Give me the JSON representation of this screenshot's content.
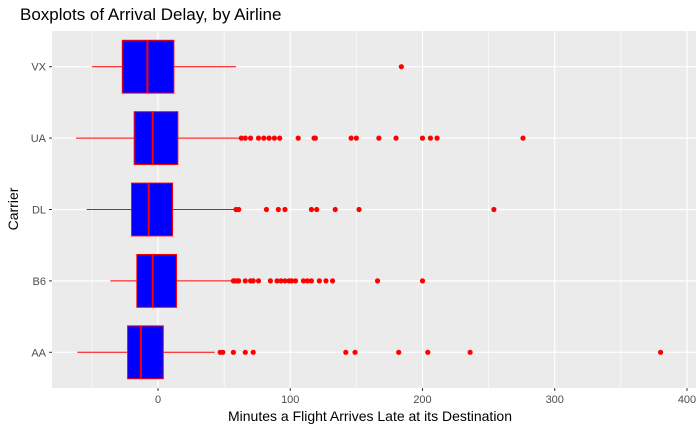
{
  "chart_data": {
    "type": "boxplot",
    "title": "Boxplots of Arrival Delay, by Airline",
    "xlabel": "Minutes a Flight Arrives Late at its Destination",
    "ylabel": "Carrier",
    "xlim": [
      -75,
      400
    ],
    "x_ticks": [
      0,
      100,
      200,
      300,
      400
    ],
    "x_tick_labels": [
      "0",
      "100",
      "200",
      "300",
      "400"
    ],
    "categories": [
      "AA",
      "B6",
      "DL",
      "UA",
      "VX"
    ],
    "grid": true,
    "colors": {
      "panel": "#ebebeb",
      "grid": "#ffffff",
      "box_fill": "#0000ff",
      "box_line": "#ff0000",
      "outlier": "#ff0000"
    },
    "boxes": [
      {
        "carrier": "AA",
        "whisker_low": -61,
        "q1": -23,
        "median": -13,
        "q3": 4,
        "whisker_high": 43,
        "outliers": [
          47,
          49,
          57,
          66,
          72,
          142,
          149,
          182,
          204,
          236,
          380
        ]
      },
      {
        "carrier": "B6",
        "whisker_low": -36,
        "q1": -16,
        "median": -4,
        "q3": 14,
        "whisker_high": 56,
        "outliers": [
          57,
          58,
          60,
          61,
          66,
          70,
          72,
          76,
          85,
          90,
          93,
          96,
          99,
          101,
          104,
          110,
          113,
          116,
          122,
          127,
          132,
          166,
          200
        ]
      },
      {
        "carrier": "DL",
        "whisker_low": -54,
        "q1": -20,
        "median": -7,
        "q3": 11,
        "whisker_high": 58,
        "outliers": [
          59,
          61,
          82,
          91,
          96,
          116,
          120,
          134,
          152,
          254
        ]
      },
      {
        "carrier": "UA",
        "whisker_low": -62,
        "q1": -18,
        "median": -4,
        "q3": 15,
        "whisker_high": 62,
        "outliers": [
          63,
          66,
          70,
          76,
          80,
          84,
          88,
          92,
          106,
          118,
          119,
          146,
          150,
          167,
          180,
          200,
          206,
          211,
          276
        ]
      },
      {
        "carrier": "VX",
        "whisker_low": -50,
        "q1": -27,
        "median": -8,
        "q3": 12,
        "whisker_high": 59,
        "outliers": [
          184
        ]
      }
    ]
  }
}
